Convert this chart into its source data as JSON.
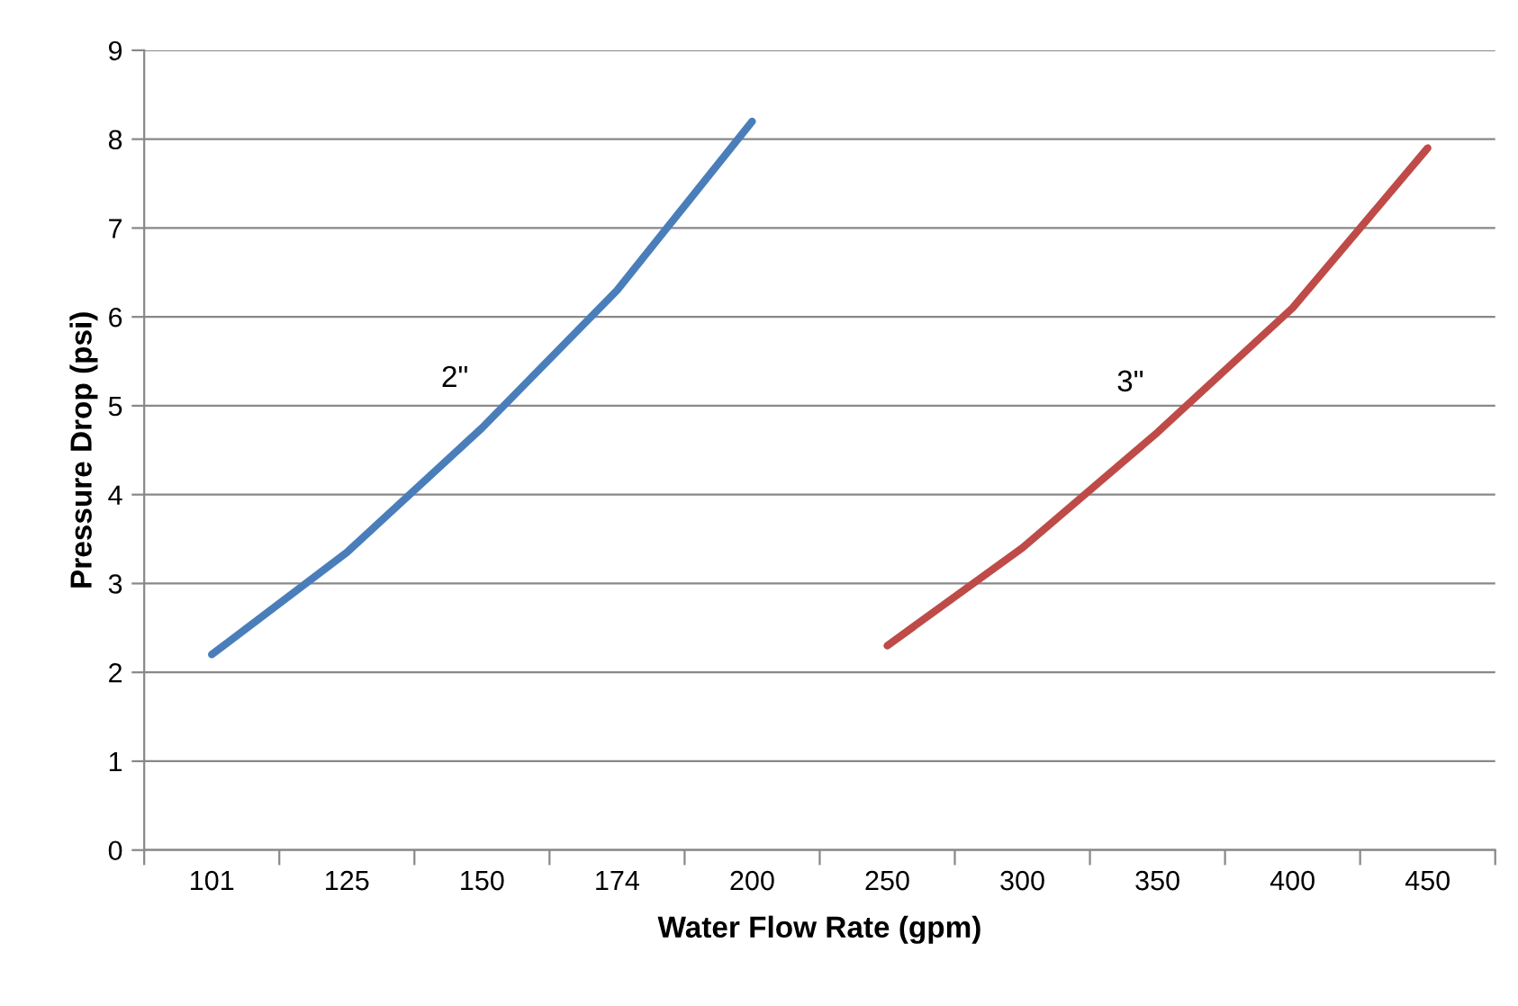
{
  "chart_data": {
    "type": "line",
    "xlabel": "Water Flow Rate (gpm)",
    "ylabel": "Pressure Drop (psi)",
    "categories": [
      "101",
      "125",
      "150",
      "174",
      "200",
      "250",
      "300",
      "350",
      "400",
      "450"
    ],
    "series": [
      {
        "name": "2\"",
        "color": "#4a7ebb",
        "values": [
          2.2,
          3.35,
          4.75,
          6.3,
          8.2,
          null,
          null,
          null,
          null,
          null
        ]
      },
      {
        "name": "3\"",
        "color": "#be4b48",
        "values": [
          null,
          null,
          null,
          null,
          null,
          2.3,
          3.4,
          4.7,
          6.1,
          7.9
        ]
      }
    ],
    "ylim": [
      0,
      9
    ],
    "yticks": [
      0,
      1,
      2,
      3,
      4,
      5,
      6,
      7,
      8,
      9
    ],
    "grid": "y",
    "marker": "none",
    "line_style": "solid",
    "legend": false
  }
}
